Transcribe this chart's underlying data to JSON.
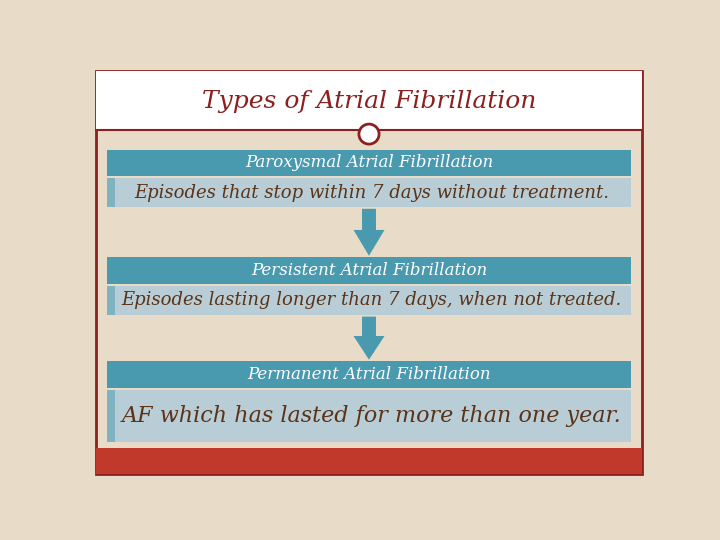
{
  "title": "Types of Atrial Fibrillation",
  "title_color": "#8B2020",
  "title_fontsize": 18,
  "bg_color": "#E8DCC8",
  "border_color": "#8B2020",
  "red_bar_color": "#C0392B",
  "teal_color": "#4A9AAF",
  "desc_bg_color": "#B8CDD6",
  "desc_text_color": "#5C3317",
  "arrow_color": "#4A9AAF",
  "white": "#FFFFFF",
  "sections": [
    {
      "header": "Paroxysmal Atrial Fibrillation",
      "description": "Episodes that stop within 7 days without treatment."
    },
    {
      "header": "Persistent Atrial Fibrillation",
      "description": "Episodes lasting longer than 7 days, when not treated."
    },
    {
      "header": "Permanent Atrial Fibrillation",
      "description": "AF which has lasted for more than one year."
    }
  ]
}
